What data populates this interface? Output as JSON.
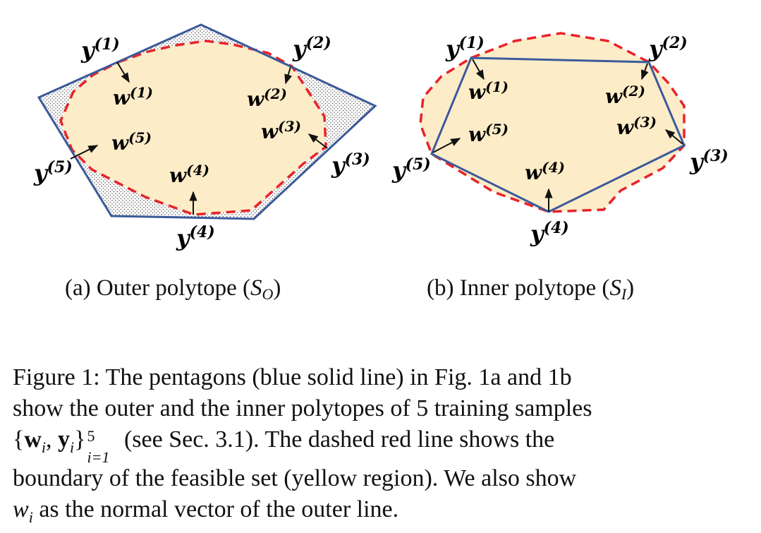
{
  "colors": {
    "feasible_fill": "#fdecc8",
    "polygon_stroke": "#3b5a9a",
    "dashed_stroke": "#e8232a",
    "hatch_dots": "#555555",
    "text": "#111111"
  },
  "panel_a": {
    "caption_prefix": "(a) Outer polytope (",
    "caption_symbol": "S",
    "caption_sub": "O",
    "caption_suffix": ")",
    "labels": {
      "y1": "y",
      "y1_sup": "(1)",
      "y2": "y",
      "y2_sup": "(2)",
      "y3": "y",
      "y3_sup": "(3)",
      "y4": "y",
      "y4_sup": "(4)",
      "y5": "y",
      "y5_sup": "(5)",
      "w1": "w",
      "w1_sup": "(1)",
      "w2": "w",
      "w2_sup": "(2)",
      "w3": "w",
      "w3_sup": "(3)",
      "w4": "w",
      "w4_sup": "(4)",
      "w5": "w",
      "w5_sup": "(5)"
    }
  },
  "panel_b": {
    "caption_prefix": "(b) Inner polytope (",
    "caption_symbol": "S",
    "caption_sub": "I",
    "caption_suffix": ")",
    "labels": {
      "y1": "y",
      "y1_sup": "(1)",
      "y2": "y",
      "y2_sup": "(2)",
      "y3": "y",
      "y3_sup": "(3)",
      "y4": "y",
      "y4_sup": "(4)",
      "y5": "y",
      "y5_sup": "(5)",
      "w1": "w",
      "w1_sup": "(1)",
      "w2": "w",
      "w2_sup": "(2)",
      "w3": "w",
      "w3_sup": "(3)",
      "w4": "w",
      "w4_sup": "(4)",
      "w5": "w",
      "w5_sup": "(5)"
    }
  },
  "caption": {
    "line1": "Figure 1: The pentagons (blue solid line) in Fig. 1a and 1b",
    "line2_a": "show the outer and the inner polytopes of ",
    "line2_num": "5",
    "line2_b": " training samples",
    "line3_open": "{",
    "line3_w": "w",
    "line3_sub_i1": "i",
    "line3_comma": ", ",
    "line3_y": "y",
    "line3_sub_i2": "i",
    "line3_close": "}",
    "line3_sup": "5",
    "line3_sub_range": "i=1",
    "line3_rest": " (see Sec. 3.1). The dashed red line shows the",
    "line4": "boundary of the feasible set (yellow region). We also show",
    "line5_w": "w",
    "line5_sub": "i",
    "line5_rest": " as the normal vector of the outer line."
  }
}
